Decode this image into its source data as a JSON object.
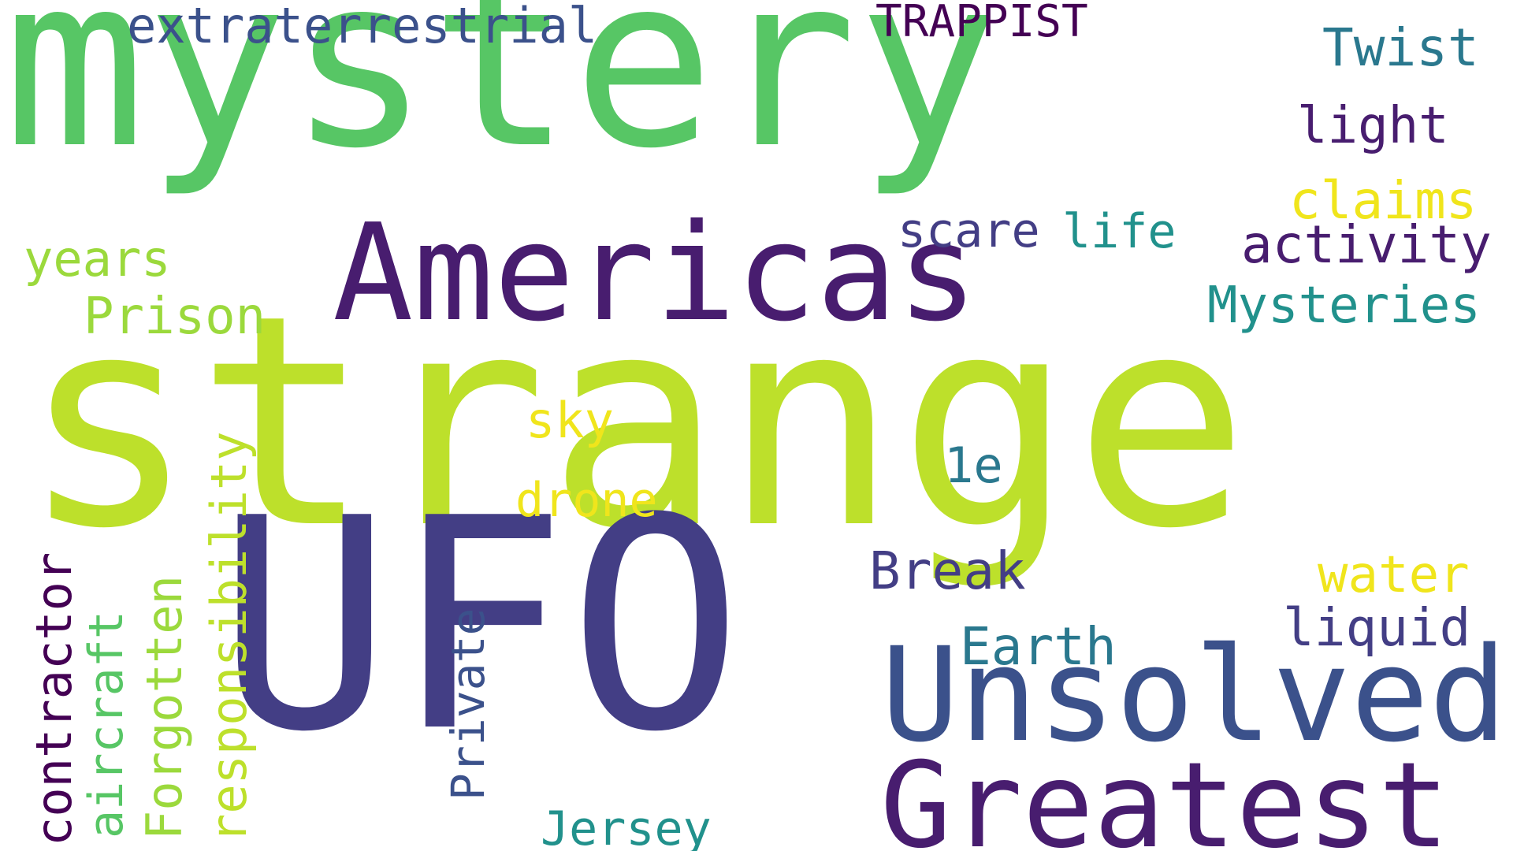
{
  "words": {
    "mystery": "mystery",
    "strange": "strange",
    "ufo": "UFO",
    "americas": "Americas",
    "unsolved": "Unsolved",
    "greatest": "Greatest",
    "extraterrestrial": "extraterrestrial",
    "trappist": "TRAPPIST",
    "twist": "Twist",
    "light": "light",
    "claims": "claims",
    "activity": "activity",
    "scare": "scare",
    "life": "life",
    "mysteries": "Mysteries",
    "years": "years",
    "prison": "Prison",
    "sky": "sky",
    "one_e": "1e",
    "drone": "drone",
    "break": "Break",
    "water": "water",
    "liquid": "liquid",
    "earth": "Earth",
    "jersey": "Jersey",
    "responsibility": "responsibility",
    "forgotten": "Forgotten",
    "aircraft": "aircraft",
    "contractor": "contractor",
    "private": "Private"
  },
  "colors": {
    "green": "#57c665",
    "lime": "#bde02b",
    "indigo": "#433e85",
    "purple": "#481d6f",
    "dark_purple": "#440154",
    "blue": "#3b518b",
    "teal": "#2a788e",
    "cyan": "#21918c",
    "yellow": "#f0e51c",
    "light_green": "#9bd93c"
  }
}
